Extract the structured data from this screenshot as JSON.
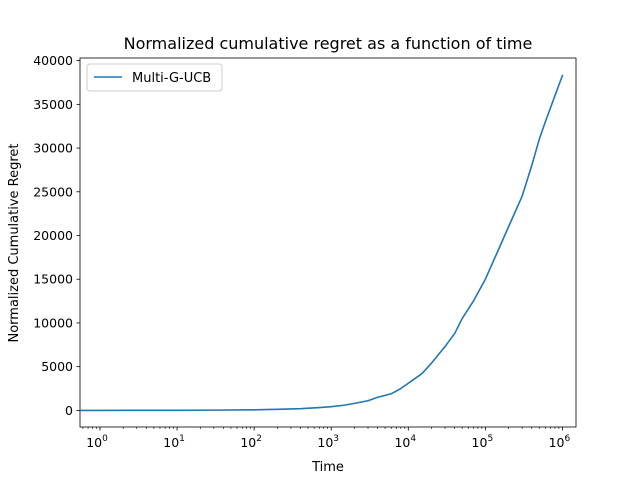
{
  "chart_data": {
    "type": "line",
    "title": "Normalized cumulative regret as a function of time",
    "xlabel": "Time",
    "ylabel": "Normalized Cumulative Regret",
    "xscale": "log",
    "xlim": [
      0.55,
      1500000
    ],
    "ylim": [
      -1900,
      40300
    ],
    "xticks": [
      {
        "value": 1,
        "base": "10",
        "exp": "0"
      },
      {
        "value": 10,
        "base": "10",
        "exp": "1"
      },
      {
        "value": 100,
        "base": "10",
        "exp": "2"
      },
      {
        "value": 1000,
        "base": "10",
        "exp": "3"
      },
      {
        "value": 10000,
        "base": "10",
        "exp": "4"
      },
      {
        "value": 100000,
        "base": "10",
        "exp": "5"
      },
      {
        "value": 1000000,
        "base": "10",
        "exp": "6"
      }
    ],
    "yticks": [
      {
        "value": 0,
        "label": "0"
      },
      {
        "value": 5000,
        "label": "5000"
      },
      {
        "value": 10000,
        "label": "10000"
      },
      {
        "value": 15000,
        "label": "15000"
      },
      {
        "value": 20000,
        "label": "20000"
      },
      {
        "value": 25000,
        "label": "25000"
      },
      {
        "value": 30000,
        "label": "30000"
      },
      {
        "value": 35000,
        "label": "35000"
      },
      {
        "value": 40000,
        "label": "40000"
      }
    ],
    "grid": false,
    "legend_position": "top-left",
    "series": [
      {
        "name": "Multi-G-UCB",
        "color": "#1f77b4",
        "x": [
          0.5,
          1,
          10,
          30,
          100,
          200,
          400,
          700,
          1000,
          1500,
          2000,
          3000,
          4000,
          6000,
          8000,
          10000,
          15000,
          20000,
          30000,
          40000,
          50000,
          70000,
          100000,
          150000,
          200000,
          300000,
          400000,
          500000,
          600000,
          800000,
          1000000
        ],
        "y": [
          0,
          0,
          10,
          30,
          70,
          120,
          200,
          320,
          420,
          600,
          800,
          1100,
          1500,
          1900,
          2500,
          3100,
          4200,
          5400,
          7300,
          8800,
          10500,
          12500,
          15000,
          18500,
          21000,
          24500,
          28000,
          31000,
          33000,
          36000,
          38300
        ]
      }
    ]
  }
}
